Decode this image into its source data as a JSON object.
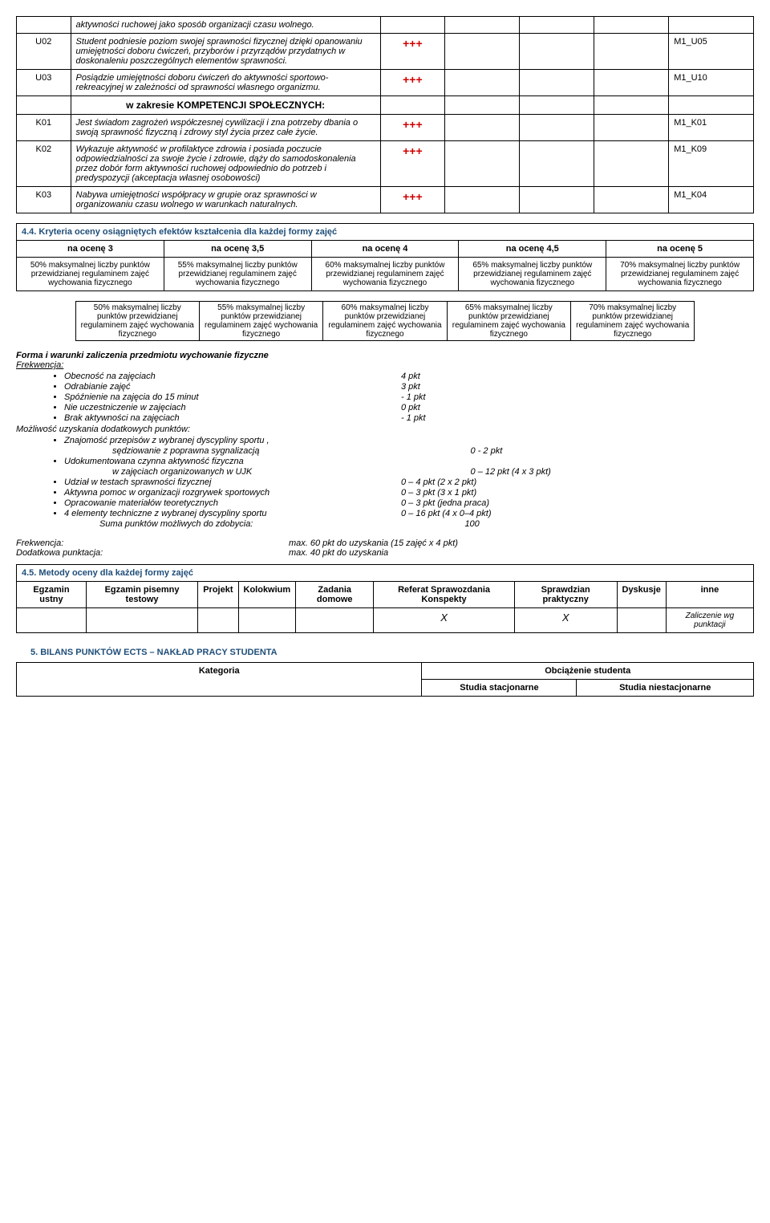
{
  "table1": {
    "rows": [
      {
        "code": "",
        "desc": "aktywności ruchowej jako sposób organizacji czasu wolnego.",
        "plus": "",
        "m": ""
      },
      {
        "code": "U02",
        "desc": "Student podniesie poziom swojej sprawności fizycznej dzięki opanowaniu umiejętności doboru ćwiczeń, przyborów i przyrządów przydatnych w doskonaleniu poszczególnych elementów sprawności.",
        "plus": "+++",
        "m": "M1_U05"
      },
      {
        "code": "U03",
        "desc": "Posiądzie umiejętności doboru ćwiczeń do aktywności sportowo-rekreacyjnej w zależności od sprawności własnego organizmu.",
        "plus": "+++",
        "m": "M1_U10"
      },
      {
        "code": "",
        "desc_header": "w zakresie KOMPETENCJI SPOŁECZNYCH:",
        "is_header": true
      },
      {
        "code": "K01",
        "desc": "Jest świadom zagrożeń współczesnej cywilizacji i zna  potrzeby dbania o swoją sprawność fizyczną i zdrowy styl życia przez całe życie.",
        "plus": "+++",
        "m": "M1_K01"
      },
      {
        "code": "K02",
        "desc": "Wykazuje aktywność w profilaktyce zdrowia i posiada poczucie odpowiedzialności za swoje życie i zdrowie, dąży do samodoskonalenia przez dobór form aktywności ruchowej odpowiednio do potrzeb i predyspozycji (akceptacja własnej osobowości)",
        "plus": "+++",
        "m": "M1_K09"
      },
      {
        "code": "K03",
        "desc": "Nabywa umiejętności współpracy w grupie oraz sprawności w organizowaniu czasu wolnego w warunkach naturalnych.",
        "plus": "+++",
        "m": "M1_K04"
      }
    ]
  },
  "section44": {
    "title": "4.4. Kryteria oceny osiągniętych efektów kształcenia dla każdej formy zajęć",
    "headers": [
      "na ocenę 3",
      "na ocenę 3,5",
      "na ocenę 4",
      "na ocenę 4,5",
      "na ocenę 5"
    ],
    "cells": [
      "50% maksymalnej liczby punktów przewidzianej regulaminem zajęć wychowania fizycznego",
      "55% maksymalnej liczby punktów przewidzianej regulaminem zajęć wychowania fizycznego",
      "60% maksymalnej liczby punktów przewidzianej regulaminem zajęć wychowania fizycznego",
      "65% maksymalnej liczby punktów przewidzianej regulaminem zajęć wychowania fizycznego",
      "70% maksymalnej liczby punktów przewidzianej regulaminem zajęć wychowania fizycznego"
    ],
    "cells2": [
      "50% maksymalnej liczby punktów przewidzianej regulaminem zajęć wychowania fizycznego",
      "55% maksymalnej liczby punktów przewidzianej regulaminem zajęć wychowania fizycznego",
      "60% maksymalnej liczby punktów przewidzianej regulaminem zajęć wychowania fizycznego",
      "65% maksymalnej liczby punktów przewidzianej regulaminem zajęć wychowania fizycznego",
      "70% maksymalnej liczby punktów przewidzianej regulaminem zajęć wychowania fizycznego"
    ]
  },
  "forma": {
    "title": "Forma i warunki zaliczenia przedmiotu wychowanie fizyczne",
    "frek_label": "Frekwencja:",
    "bullets1": [
      {
        "l": "Obecność na zajęciach",
        "r": " 4 pkt"
      },
      {
        "l": "Odrabianie zajęć",
        "r": "3 pkt"
      },
      {
        "l": "Spóźnienie na zajęcia do 15 minut",
        "r": "- 1 pkt"
      },
      {
        "l": "Nie uczestniczenie w zajęciach",
        "r": " 0 pkt"
      },
      {
        "l": "Brak aktywności na zajęciach",
        "r": "- 1 pkt"
      }
    ],
    "mozl_label": "Możliwość uzyskania dodatkowych punktów:",
    "bullets2": [
      {
        "l": "Znajomość przepisów z wybranej dyscypliny sportu       ,",
        "r": ""
      },
      {
        "l_indent": "sędziowanie z poprawna sygnalizacją",
        "r": "0 - 2 pkt"
      },
      {
        "l": "Udokumentowana czynna aktywność fizyczna",
        "r": ""
      },
      {
        "l_indent": "            w zajęciach organizowanych w UJK",
        "r": "0 – 12 pkt  (4 x 3 pkt)"
      },
      {
        "l": "Udział w testach sprawności fizycznej",
        "r": "0 – 4 pkt    (2 x 2 pkt)"
      },
      {
        "l": "Aktywna pomoc w organizacji rozgrywek sportowych",
        "r": "0 – 3 pkt    (3 x 1 pkt)"
      },
      {
        "l": "Opracowanie materiałów teoretycznych",
        "r": "0 – 3 pkt    (jedna praca)"
      },
      {
        "l": "4 elementy techniczne z wybranej dyscypliny sportu",
        "r": "0 – 16 pkt  (4 x 0–4 pkt)"
      },
      {
        "l_plain": "Suma punktów możliwych do zdobycia:",
        "r": "100"
      }
    ],
    "summary": [
      {
        "l": "Frekwencja:",
        "r": "max. 60 pkt do uzyskania (15 zajęć x 4 pkt)"
      },
      {
        "l": "Dodatkowa punktacja:",
        "r": "max. 40 pkt do uzyskania"
      }
    ]
  },
  "section45": {
    "title": "4.5. Metody oceny dla każdej formy zajęć",
    "headers": [
      "Egzamin ustny",
      "Egzamin pisemny testowy",
      "Projekt",
      "Kolokwium",
      "Zadania domowe",
      "Referat Sprawozdania Konspekty",
      "Sprawdzian praktyczny",
      "Dyskusje",
      "inne"
    ],
    "row": [
      "",
      "",
      "",
      "",
      "",
      "X",
      "X",
      "",
      "Zaliczenie wg punktacji"
    ]
  },
  "section5_title": "5.   BILANS PUNKTÓW ECTS – NAKŁAD PRACY STUDENTA",
  "ects": {
    "h1": "Kategoria",
    "h2": "Obciążenie studenta",
    "h3": "Studia stacjonarne",
    "h4": "Studia niestacjonarne"
  }
}
